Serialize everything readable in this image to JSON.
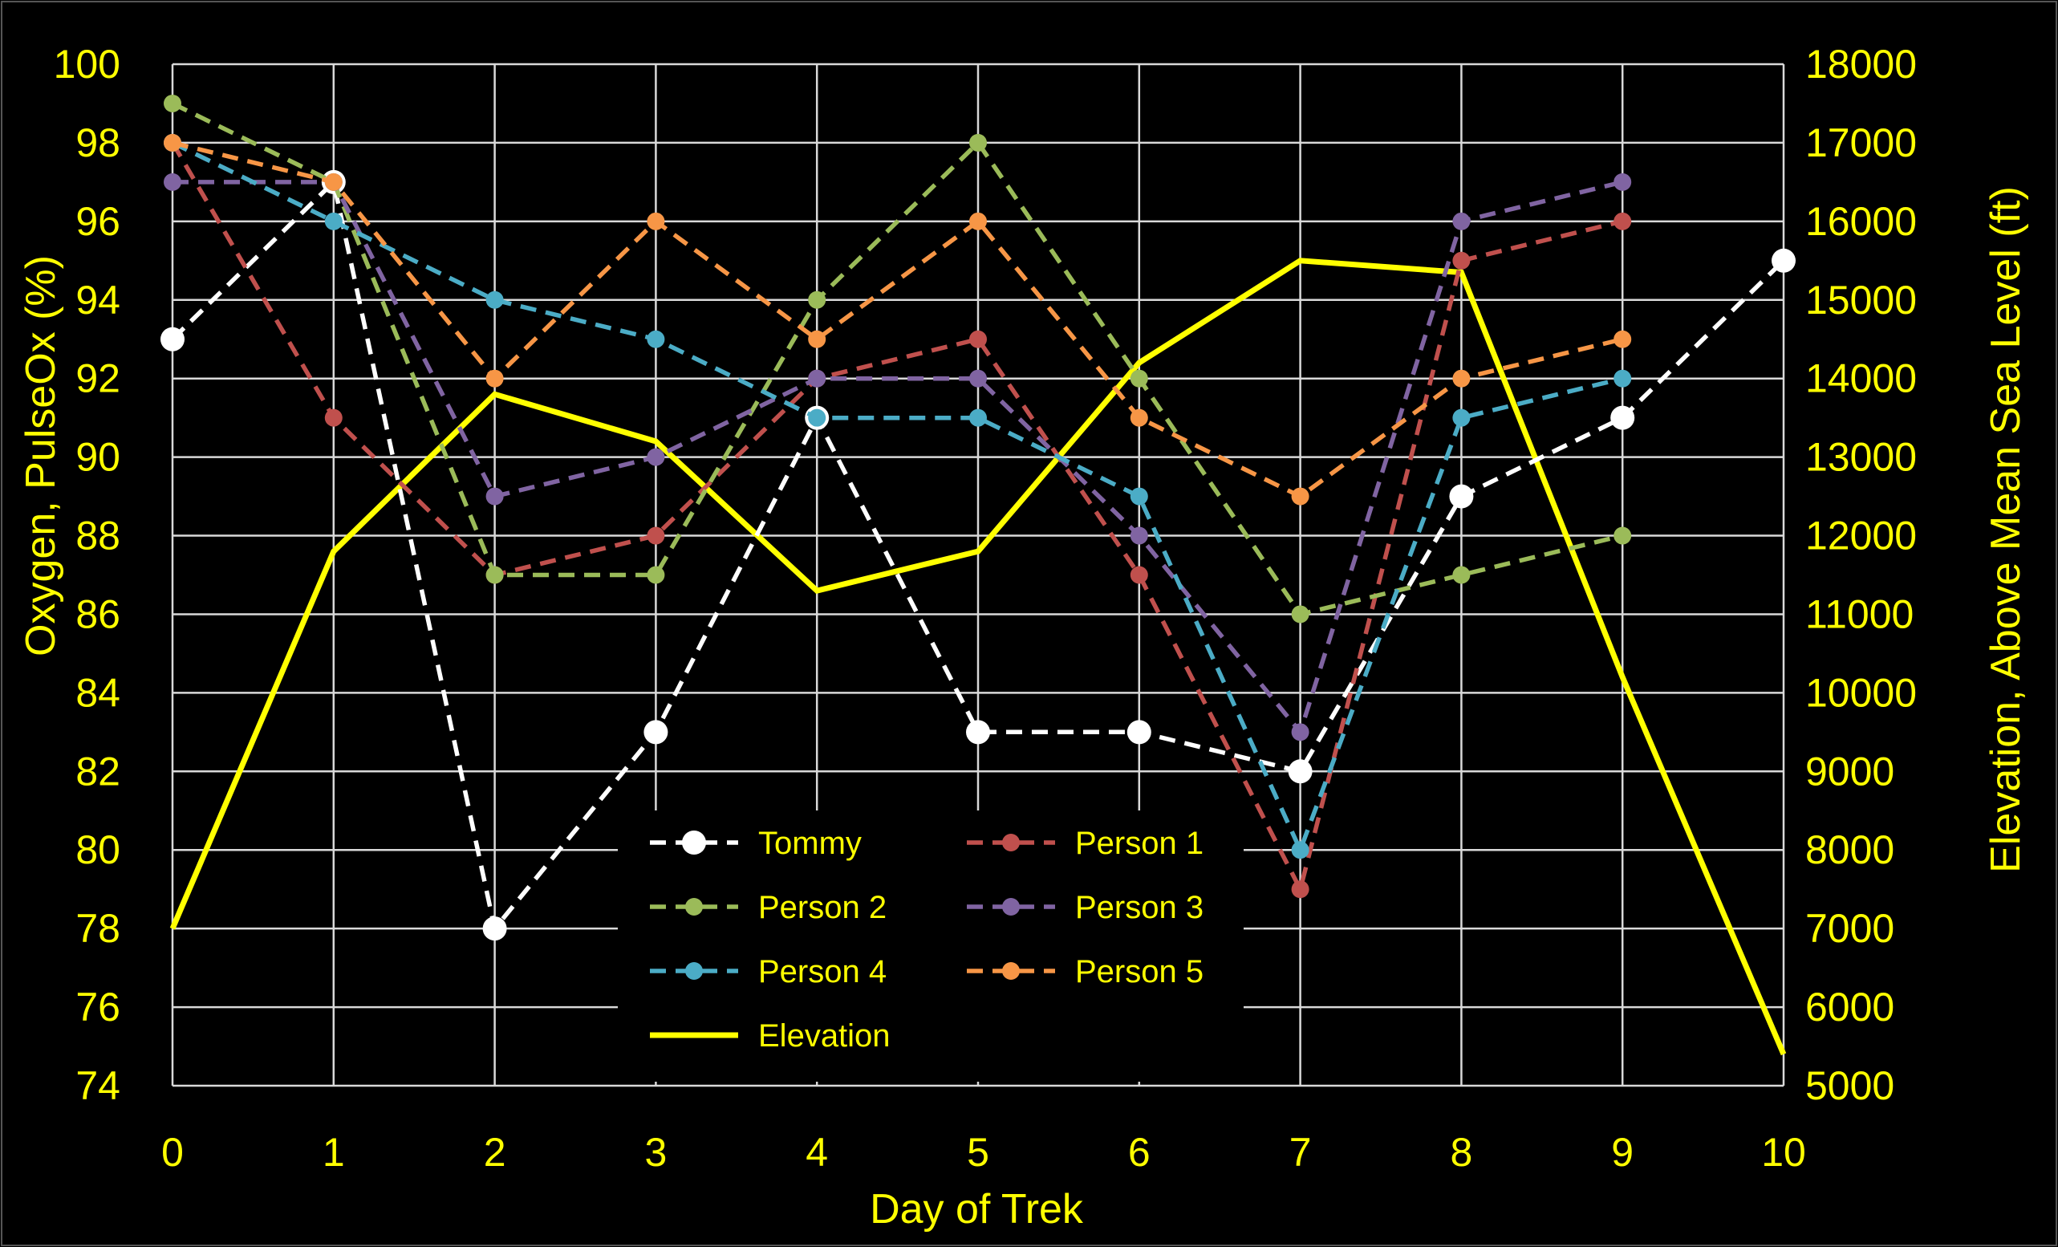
{
  "chart_data": {
    "type": "line",
    "xlabel": "Day of Trek",
    "ylabel": "Oxygen, PulseOx (%)",
    "y2label": "Elevation, Above Mean Sea Level (ft)",
    "x": [
      0,
      1,
      2,
      3,
      4,
      5,
      6,
      7,
      8,
      9,
      10
    ],
    "xlim": [
      0,
      10
    ],
    "ylim": [
      74,
      100
    ],
    "y2lim": [
      5000,
      18000
    ],
    "y_ticks": [
      "74",
      "76",
      "78",
      "80",
      "82",
      "84",
      "86",
      "88",
      "90",
      "92",
      "94",
      "96",
      "98",
      "100"
    ],
    "y2_ticks": [
      "5000",
      "6000",
      "7000",
      "8000",
      "9000",
      "10000",
      "11000",
      "12000",
      "13000",
      "14000",
      "15000",
      "16000",
      "17000",
      "18000"
    ],
    "x_ticks": [
      "0",
      "1",
      "2",
      "3",
      "4",
      "5",
      "6",
      "7",
      "8",
      "9",
      "10"
    ],
    "grid": true,
    "legend_placement": "bottom-center inside plot",
    "series": [
      {
        "name": "Tommy",
        "axis": "left",
        "style": "dashed-marker",
        "color": "#FFFFFF",
        "values": [
          93,
          97,
          78,
          83,
          91,
          83,
          83,
          82,
          89,
          91,
          95
        ]
      },
      {
        "name": "Person 1",
        "axis": "left",
        "style": "dashed-marker",
        "color": "#C0504D",
        "values": [
          98,
          91,
          87,
          88,
          92,
          93,
          87,
          79,
          95,
          96,
          null
        ]
      },
      {
        "name": "Person 2",
        "axis": "left",
        "style": "dashed-marker",
        "color": "#9BBB59",
        "values": [
          99,
          97,
          87,
          87,
          94,
          98,
          92,
          86,
          87,
          88,
          null
        ]
      },
      {
        "name": "Person 3",
        "axis": "left",
        "style": "dashed-marker",
        "color": "#8064A2",
        "values": [
          97,
          97,
          89,
          90,
          92,
          92,
          88,
          83,
          96,
          97,
          null
        ]
      },
      {
        "name": "Person 4",
        "axis": "left",
        "style": "dashed-marker",
        "color": "#4BACC6",
        "values": [
          98,
          96,
          94,
          93,
          91,
          91,
          89,
          80,
          91,
          92,
          null
        ]
      },
      {
        "name": "Person 5",
        "axis": "left",
        "style": "dashed-marker",
        "color": "#F79646",
        "values": [
          98,
          97,
          92,
          96,
          93,
          96,
          91,
          89,
          92,
          93,
          null
        ]
      },
      {
        "name": "Elevation",
        "axis": "right",
        "style": "solid",
        "color": "#FFFF00",
        "values": [
          7000,
          11800,
          13800,
          13200,
          11300,
          11800,
          14200,
          15500,
          15350,
          10200,
          5400
        ]
      }
    ]
  }
}
